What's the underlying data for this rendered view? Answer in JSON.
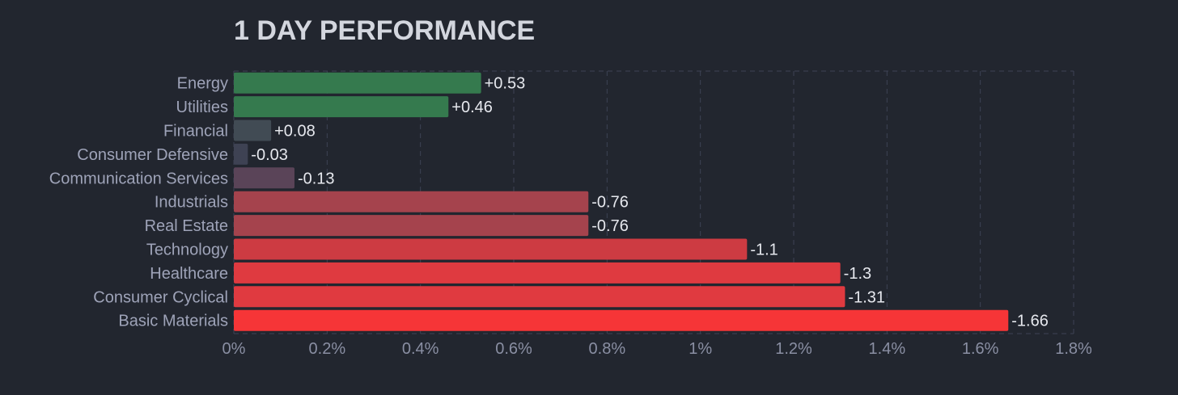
{
  "chart_data": {
    "type": "bar",
    "orientation": "horizontal",
    "title": "1 DAY PERFORMANCE",
    "categories": [
      "Energy",
      "Utilities",
      "Financial",
      "Consumer Defensive",
      "Communication Services",
      "Industrials",
      "Real Estate",
      "Technology",
      "Healthcare",
      "Consumer Cyclical",
      "Basic Materials"
    ],
    "values": [
      0.53,
      0.46,
      0.08,
      -0.03,
      -0.13,
      -0.76,
      -0.76,
      -1.1,
      -1.3,
      -1.31,
      -1.66
    ],
    "value_labels": [
      "+0.53",
      "+0.46",
      "+0.08",
      "-0.03",
      "-0.13",
      "-0.76",
      "-0.76",
      "-1.1",
      "-1.3",
      "-1.31",
      "-1.66"
    ],
    "bar_colors": [
      "#357a4e",
      "#357a4e",
      "#414b54",
      "#3e4253",
      "#5a4458",
      "#a5434d",
      "#a5434d",
      "#cd3b42",
      "#df3a40",
      "#e03a40",
      "#f63537"
    ],
    "xlim": [
      0,
      1.8
    ],
    "xticks": [
      "0%",
      "0.2%",
      "0.4%",
      "0.6%",
      "0.8%",
      "1%",
      "1.2%",
      "1.4%",
      "1.6%",
      "1.8%"
    ],
    "xlabel": "",
    "ylabel": "",
    "grid": true,
    "note": "bar length encodes absolute percent change"
  }
}
